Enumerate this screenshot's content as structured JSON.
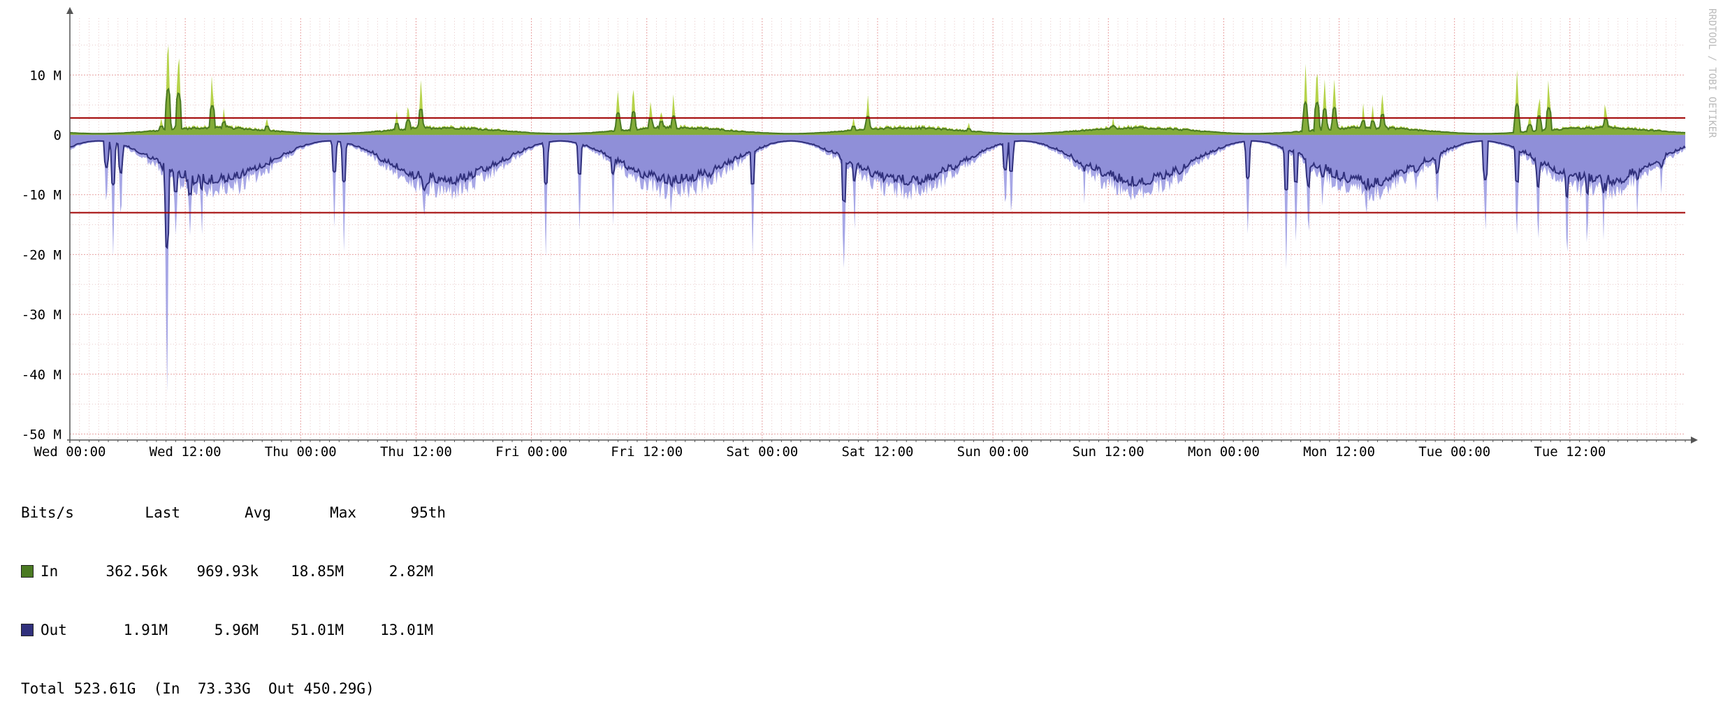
{
  "watermark": "RRDTOOL / TOBI OETIKER",
  "colors": {
    "in_area": "#b6d34a",
    "in_line": "#4a7a22",
    "out_area": "#a7a7e6",
    "out_line": "#30307c",
    "threshold": "#a00000",
    "grid_major": "#e8a0a0",
    "grid_minor": "#e8c8c8",
    "axis": "#555555"
  },
  "chart_data": {
    "type": "area",
    "ylabel": "",
    "yunit": "bits/s",
    "ylim": [
      -51000000,
      19500000
    ],
    "yticks": [
      {
        "value": 10000000,
        "label": "10 M"
      },
      {
        "value": 0,
        "label": "0"
      },
      {
        "value": -10000000,
        "label": "-10 M"
      },
      {
        "value": -20000000,
        "label": "-20 M"
      },
      {
        "value": -30000000,
        "label": "-30 M"
      },
      {
        "value": -40000000,
        "label": "-40 M"
      },
      {
        "value": -50000000,
        "label": "-50 M"
      }
    ],
    "x_range_hours": [
      0,
      168
    ],
    "xticks": [
      {
        "hour": 0,
        "label": "Wed 00:00"
      },
      {
        "hour": 12,
        "label": "Wed 12:00"
      },
      {
        "hour": 24,
        "label": "Thu 00:00"
      },
      {
        "hour": 36,
        "label": "Thu 12:00"
      },
      {
        "hour": 48,
        "label": "Fri 00:00"
      },
      {
        "hour": 60,
        "label": "Fri 12:00"
      },
      {
        "hour": 72,
        "label": "Sat 00:00"
      },
      {
        "hour": 84,
        "label": "Sat 12:00"
      },
      {
        "hour": 96,
        "label": "Sun 00:00"
      },
      {
        "hour": 108,
        "label": "Sun 12:00"
      },
      {
        "hour": 120,
        "label": "Mon 00:00"
      },
      {
        "hour": 132,
        "label": "Mon 12:00"
      },
      {
        "hour": 144,
        "label": "Tue 00:00"
      },
      {
        "hour": 156,
        "label": "Tue 12:00"
      }
    ],
    "grid": true,
    "thresholds": [
      {
        "series": "In",
        "value": 2820000
      },
      {
        "series": "Out",
        "value": -13010000
      }
    ],
    "series": [
      {
        "name": "In",
        "peaks": [
          {
            "hour": 10.2,
            "value": 18.8
          },
          {
            "hour": 11.3,
            "value": 16.5
          },
          {
            "hour": 14.8,
            "value": 11.5
          },
          {
            "hour": 9.5,
            "value": 3.5
          },
          {
            "hour": 16.0,
            "value": 4.5
          },
          {
            "hour": 20.5,
            "value": 3.8
          },
          {
            "hour": 34.0,
            "value": 4.5
          },
          {
            "hour": 36.5,
            "value": 10.2
          },
          {
            "hour": 35.2,
            "value": 6.0
          },
          {
            "hour": 57.0,
            "value": 8.5
          },
          {
            "hour": 58.6,
            "value": 9.0
          },
          {
            "hour": 60.4,
            "value": 6.5
          },
          {
            "hour": 62.8,
            "value": 8.0
          },
          {
            "hour": 61.5,
            "value": 5.0
          },
          {
            "hour": 83.0,
            "value": 7.5
          },
          {
            "hour": 81.5,
            "value": 3.0
          },
          {
            "hour": 93.5,
            "value": 2.5
          },
          {
            "hour": 108.5,
            "value": 3.5
          },
          {
            "hour": 128.5,
            "value": 12.5
          },
          {
            "hour": 129.7,
            "value": 13.0
          },
          {
            "hour": 130.5,
            "value": 11.5
          },
          {
            "hour": 131.5,
            "value": 12.0
          },
          {
            "hour": 134.5,
            "value": 5.5
          },
          {
            "hour": 136.5,
            "value": 7.5
          },
          {
            "hour": 135.5,
            "value": 5.0
          },
          {
            "hour": 150.5,
            "value": 13.5
          },
          {
            "hour": 153.8,
            "value": 11.5
          },
          {
            "hour": 152.8,
            "value": 8.0
          },
          {
            "hour": 159.7,
            "value": 6.5
          },
          {
            "hour": 151.8,
            "value": 4.5
          }
        ]
      },
      {
        "name": "Out",
        "peaks": [
          {
            "hour": 10.1,
            "value": -51.0
          },
          {
            "hour": 11.0,
            "value": -22.0
          },
          {
            "hour": 12.5,
            "value": -21.0
          },
          {
            "hour": 13.7,
            "value": -20.5
          },
          {
            "hour": 4.5,
            "value": -20.5
          },
          {
            "hour": 5.3,
            "value": -17.0
          },
          {
            "hour": 3.8,
            "value": -16.0
          },
          {
            "hour": 28.5,
            "value": -20.5
          },
          {
            "hour": 27.5,
            "value": -16.0
          },
          {
            "hour": 36.8,
            "value": -19.0
          },
          {
            "hour": 49.5,
            "value": -21.0
          },
          {
            "hour": 53.0,
            "value": -17.5
          },
          {
            "hour": 56.5,
            "value": -15.5
          },
          {
            "hour": 62.5,
            "value": -13.5
          },
          {
            "hour": 71.0,
            "value": -21.0
          },
          {
            "hour": 80.5,
            "value": -29.0
          },
          {
            "hour": 81.6,
            "value": -18.5
          },
          {
            "hour": 97.3,
            "value": -16.0
          },
          {
            "hour": 97.9,
            "value": -18.5
          },
          {
            "hour": 105.5,
            "value": -14.0
          },
          {
            "hour": 112.5,
            "value": -11.0
          },
          {
            "hour": 122.5,
            "value": -21.0
          },
          {
            "hour": 126.5,
            "value": -23.0
          },
          {
            "hour": 127.5,
            "value": -19.0
          },
          {
            "hour": 128.8,
            "value": -21.5
          },
          {
            "hour": 130.3,
            "value": -15.0
          },
          {
            "hour": 134.8,
            "value": -18.0
          },
          {
            "hour": 140.0,
            "value": -10.0
          },
          {
            "hour": 142.2,
            "value": -17.5
          },
          {
            "hour": 147.2,
            "value": -21.0
          },
          {
            "hour": 150.5,
            "value": -22.0
          },
          {
            "hour": 152.7,
            "value": -21.0
          },
          {
            "hour": 155.7,
            "value": -25.5
          },
          {
            "hour": 157.8,
            "value": -24.0
          },
          {
            "hour": 159.5,
            "value": -20.0
          },
          {
            "hour": 163.0,
            "value": -15.0
          },
          {
            "hour": 165.5,
            "value": -10.5
          }
        ]
      }
    ]
  },
  "legend": {
    "header": {
      "name": "Bits/s",
      "last": "Last",
      "avg": "Avg",
      "max": "Max",
      "p95": "95th"
    },
    "rows": [
      {
        "name": "In",
        "color": "#4a7a22",
        "last": "362.56k",
        "avg": "969.93k",
        "max": "18.85M",
        "p95": "2.82M"
      },
      {
        "name": "Out",
        "color": "#30307c",
        "last": "1.91M",
        "avg": "5.96M",
        "max": "51.01M",
        "p95": "13.01M"
      }
    ],
    "total": "Total 523.61G  (In  73.33G  Out 450.29G)"
  }
}
